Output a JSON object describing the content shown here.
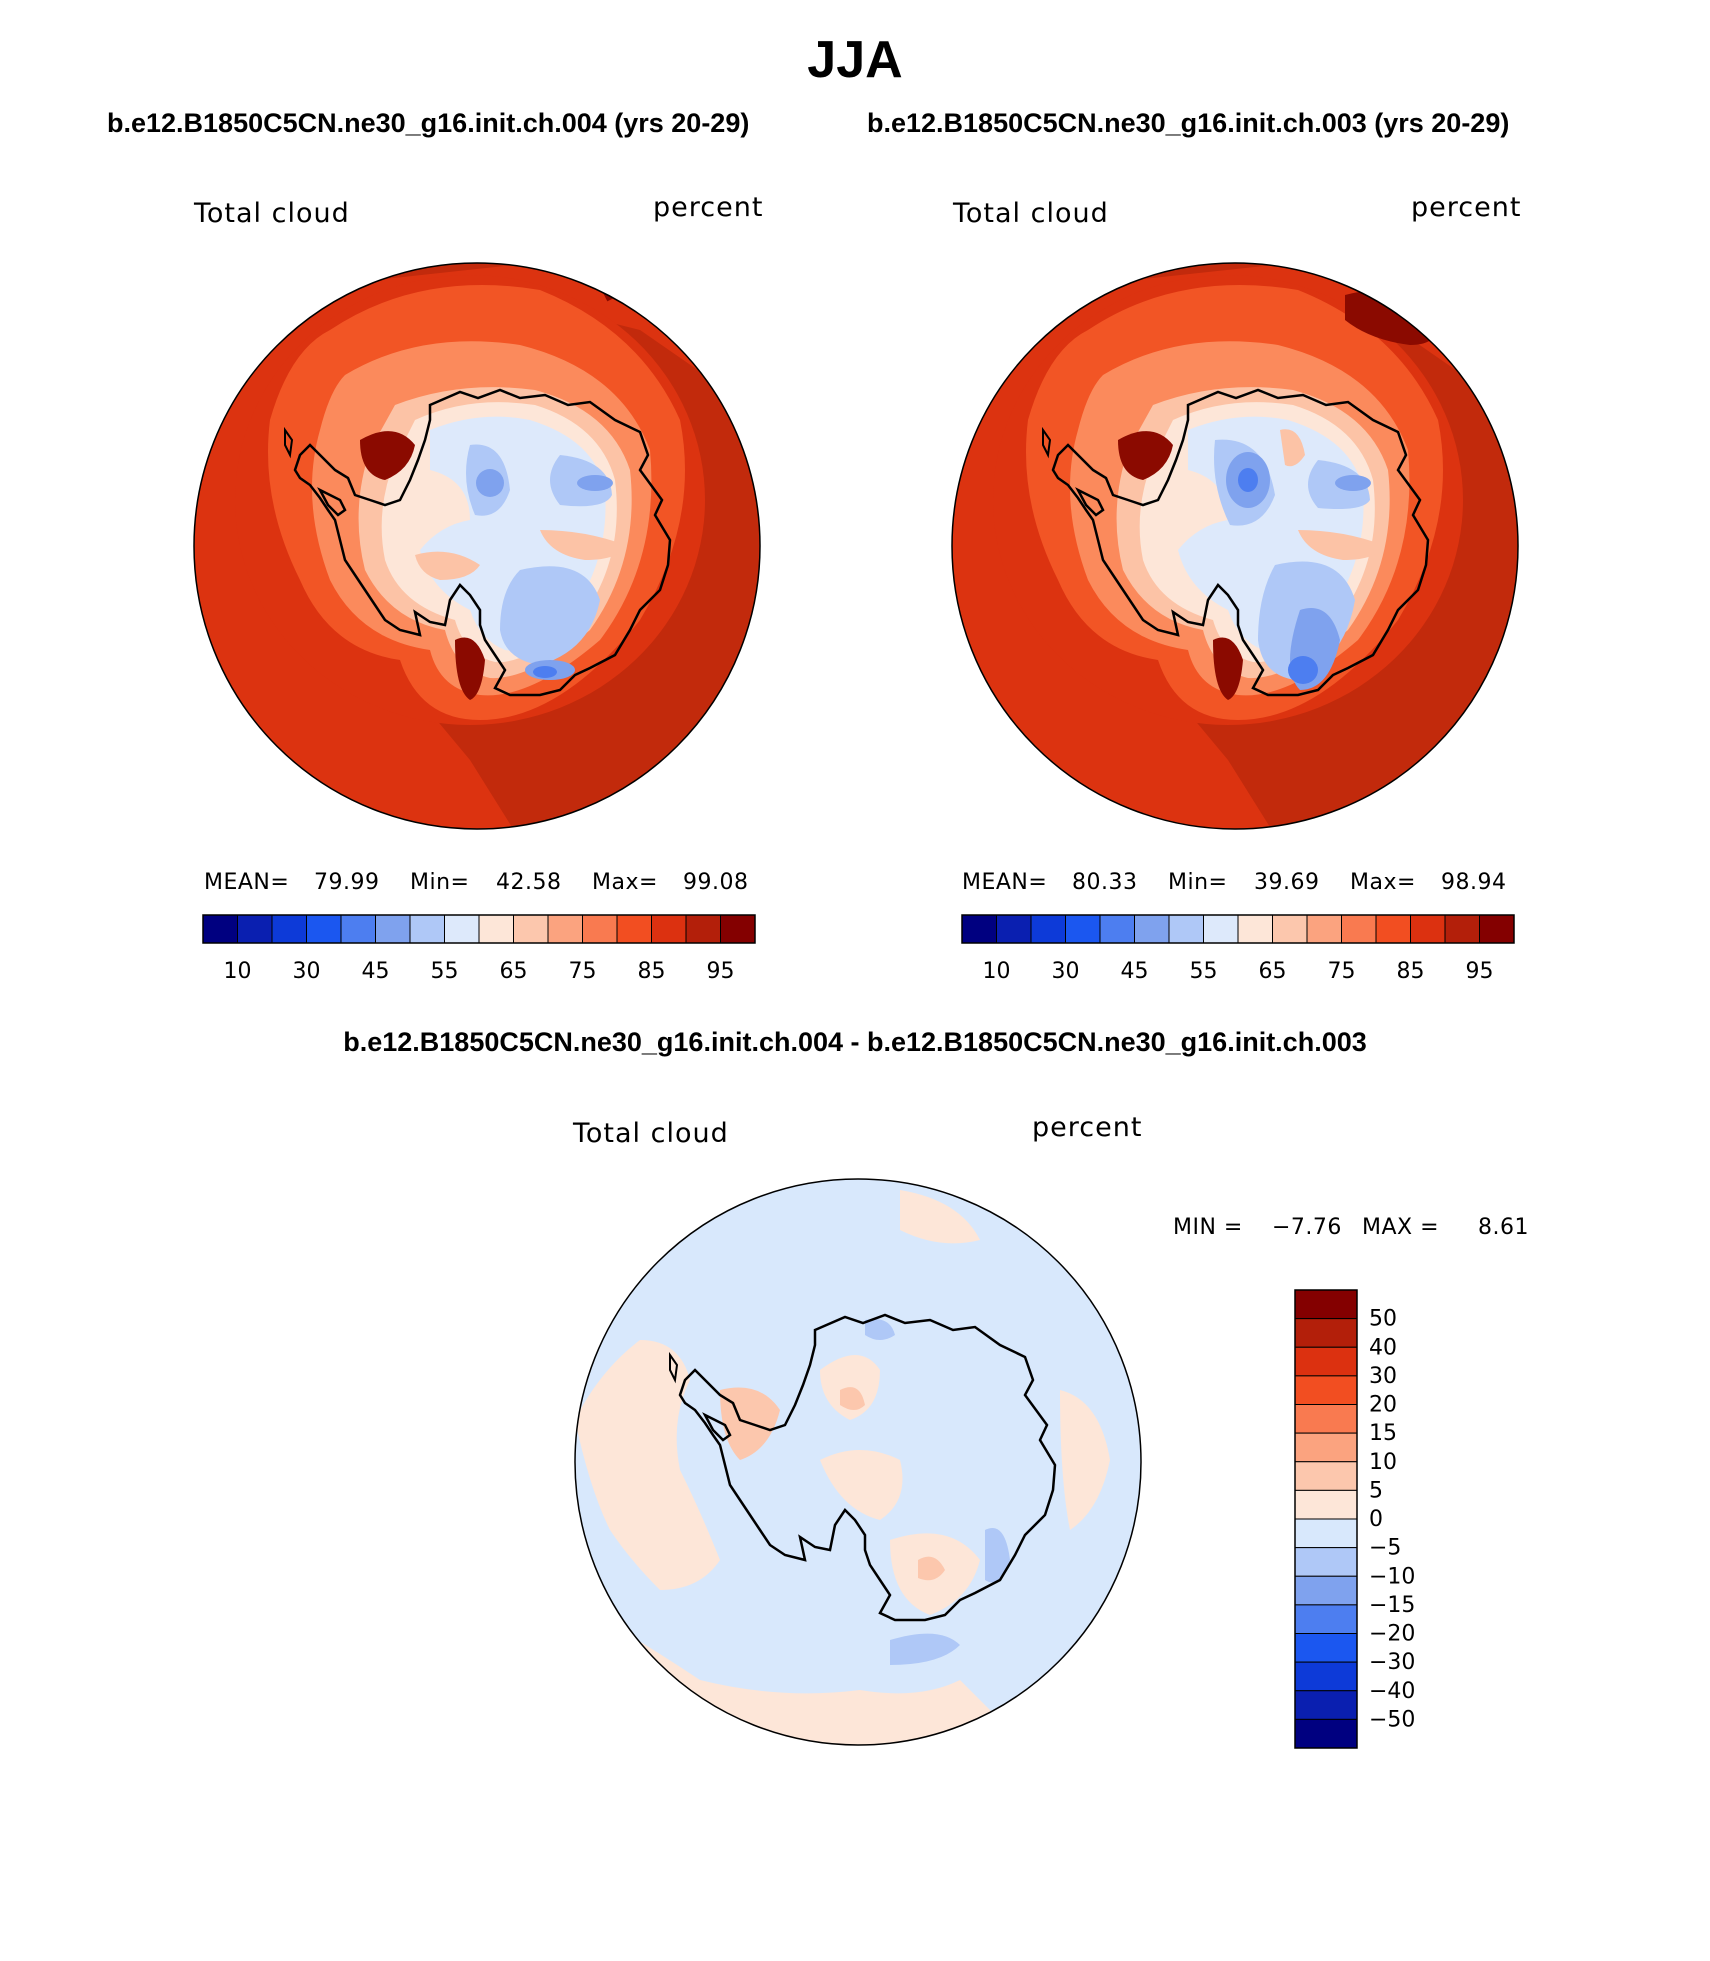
{
  "figure": {
    "title": "JJA",
    "left_case": "b.e12.B1850C5CN.ne30_g16.init.ch.004 (yrs 20-29)",
    "right_case": "b.e12.B1850C5CN.ne30_g16.init.ch.003 (yrs 20-29)",
    "diff_title": "b.e12.B1850C5CN.ne30_g16.init.ch.004 - b.e12.B1850C5CN.ne30_g16.init.ch.003"
  },
  "panels": [
    {
      "variable": "Total cloud",
      "units": "percent",
      "mean_label": "MEAN=",
      "mean": "79.99",
      "min_label": "Min=",
      "min": "42.58",
      "max_label": "Max=",
      "max": "99.08"
    },
    {
      "variable": "Total cloud",
      "units": "percent",
      "mean_label": "MEAN=",
      "mean": "80.33",
      "min_label": "Min=",
      "min": "39.69",
      "max_label": "Max=",
      "max": "98.94"
    },
    {
      "variable": "Total cloud",
      "units": "percent",
      "min_label": "MIN =",
      "min": "−7.76",
      "max_label": "MAX =",
      "max": "8.61"
    }
  ],
  "colorbar_abs": {
    "colors": [
      "#000080",
      "#0a1fb0",
      "#0d3ad8",
      "#1b57f0",
      "#4d7ef0",
      "#7fa2ee",
      "#afc8f7",
      "#dde9fb",
      "#fde6d8",
      "#fcc7ad",
      "#fba37f",
      "#f97a50",
      "#f24e21",
      "#dc3110",
      "#b31f0a",
      "#840000"
    ],
    "tick_labels": [
      "10",
      "30",
      "45",
      "55",
      "65",
      "75",
      "85",
      "95"
    ]
  },
  "colorbar_diff": {
    "colors": [
      "#000080",
      "#0a1fb0",
      "#0d3ad8",
      "#1b57f0",
      "#4d7ef0",
      "#7fa2ee",
      "#afc8f7",
      "#d8e8fc",
      "#fde6d8",
      "#fcc7ad",
      "#fba37f",
      "#f97a50",
      "#f24e21",
      "#dc3110",
      "#b31f0a",
      "#840000"
    ],
    "tick_labels": [
      "50",
      "40",
      "30",
      "20",
      "15",
      "10",
      "5",
      "0",
      "−5",
      "−10",
      "−15",
      "−20",
      "−30",
      "−40",
      "−50"
    ]
  },
  "map_colors": {
    "ocean_outer": "#c22a0c",
    "ocean_mid": "#dc3310",
    "ocean_inner": "#f25525",
    "ring_1": "#fb8a5c",
    "ring_2": "#fcc3a6",
    "ring_3": "#fde6d8",
    "ice_light": "#dde9fb",
    "ice_mid": "#afc8f7",
    "ice_dark": "#7fa2ee",
    "ice_darkest": "#4d7ef0",
    "max_spot": "#8b0a00",
    "diff_blue": "#d8e8fc",
    "diff_peach": "#fde6d8",
    "diff_orange": "#fcc7ad",
    "diff_blue_mid": "#afc8f7",
    "coast": "#000000"
  }
}
